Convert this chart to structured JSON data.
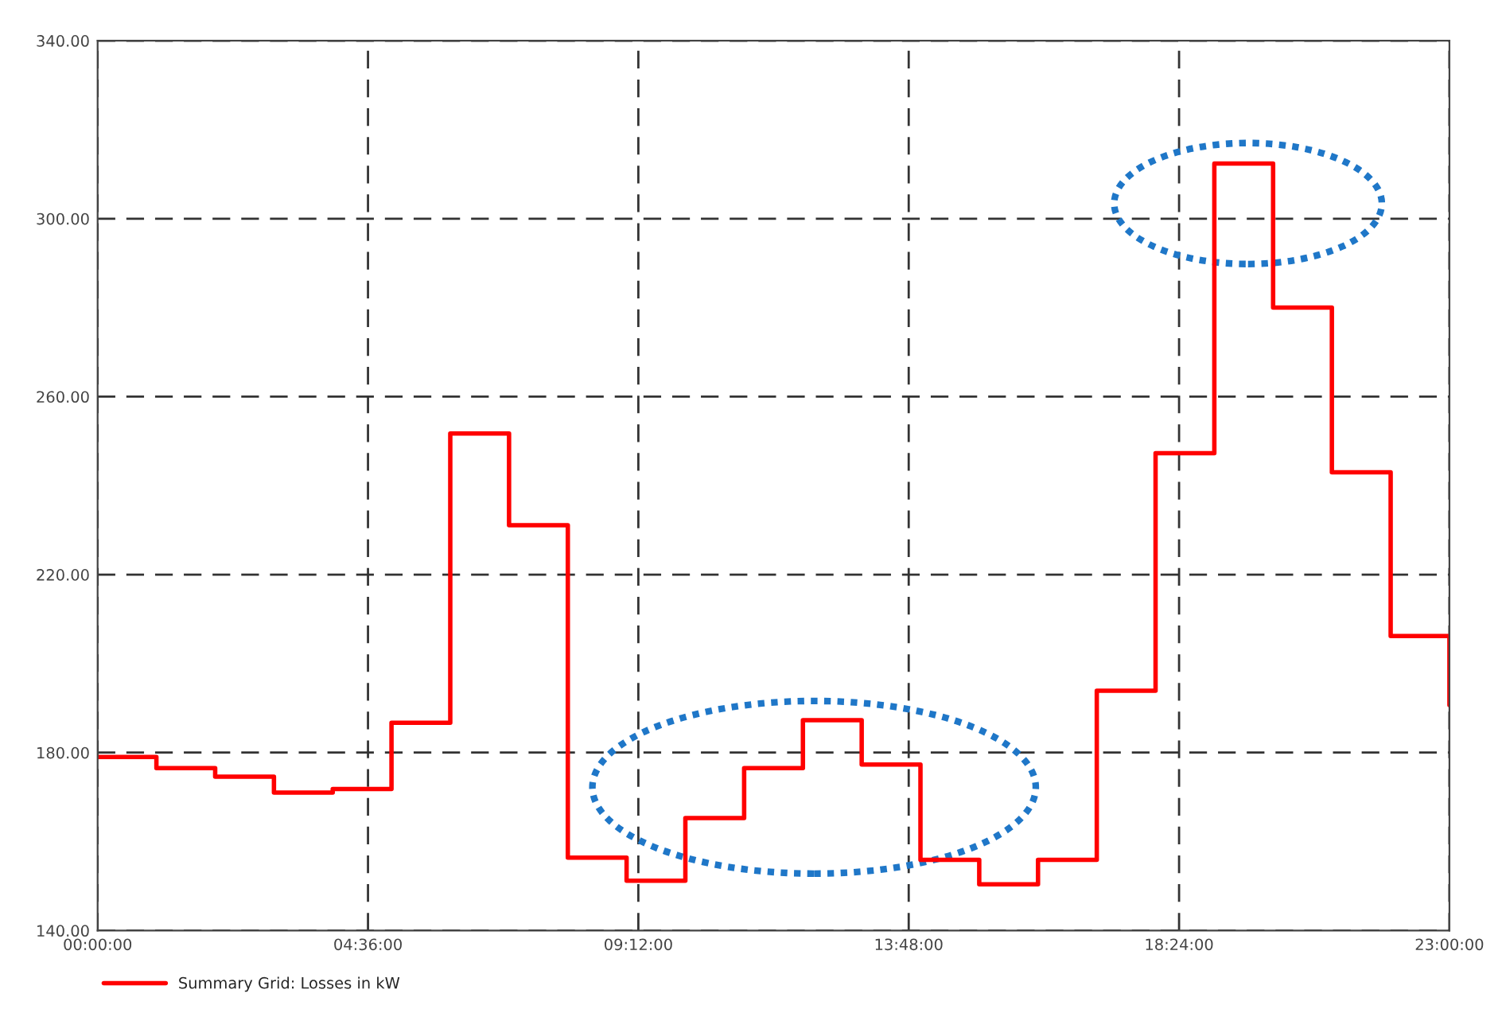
{
  "chart_data": {
    "type": "step",
    "x": [
      0,
      1,
      2,
      3,
      4,
      5,
      6,
      7,
      8,
      9,
      10,
      11,
      12,
      13,
      14,
      15,
      16,
      17,
      18,
      19,
      20,
      21,
      22,
      23
    ],
    "series": [
      {
        "name": "Summary Grid: Losses in kW",
        "color": "#ff0000",
        "values": [
          179,
          176.5,
          174.6,
          171,
          171.8,
          186.7,
          251.7,
          231.1,
          156.4,
          151.2,
          165.3,
          176.5,
          187.3,
          177.3,
          155.9,
          150.4,
          155.9,
          193.9,
          247.3,
          312.4,
          280,
          243,
          206.2,
          190.7
        ]
      }
    ],
    "xlim": [
      0,
      23
    ],
    "xticks": [
      {
        "value": 0,
        "label": "00:00:00"
      },
      {
        "value": 4.6,
        "label": "04:36:00"
      },
      {
        "value": 9.2,
        "label": "09:12:00"
      },
      {
        "value": 13.8,
        "label": "13:48:00"
      },
      {
        "value": 18.4,
        "label": "18:24:00"
      },
      {
        "value": 23,
        "label": "23:00:00"
      }
    ],
    "ylim": [
      140,
      340
    ],
    "yticks": [
      {
        "value": 140,
        "label": "140.00"
      },
      {
        "value": 180,
        "label": "180.00"
      },
      {
        "value": 220,
        "label": "220.00"
      },
      {
        "value": 260,
        "label": "260.00"
      },
      {
        "value": 300,
        "label": "300.00"
      },
      {
        "value": 340,
        "label": "340.00"
      }
    ],
    "grid": true,
    "legend": "bottom left"
  }
}
